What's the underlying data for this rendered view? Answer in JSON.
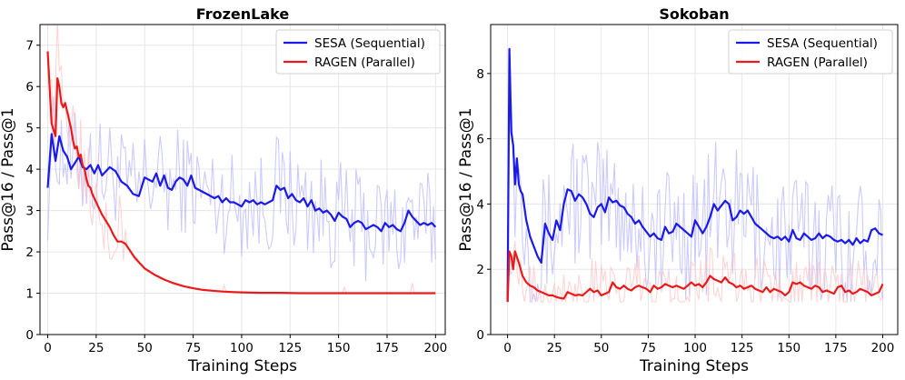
{
  "chart_data": [
    {
      "type": "line",
      "title": "FrozenLake",
      "xlabel": "Training Steps",
      "ylabel": "Pass@16 / Pass@1",
      "xlim": [
        -4,
        205
      ],
      "ylim": [
        0,
        7.5
      ],
      "xticks": [
        0,
        25,
        50,
        75,
        100,
        125,
        150,
        175,
        200
      ],
      "yticks": [
        0,
        1,
        2,
        3,
        4,
        5,
        6,
        7
      ],
      "grid": true,
      "legend_position": "top-right",
      "series": [
        {
          "name": "SESA (Sequential)",
          "color": "#1a1aeb",
          "x": [
            0,
            2,
            4,
            6,
            8,
            10,
            12,
            14,
            16,
            18,
            20,
            22,
            24,
            26,
            28,
            30,
            32,
            35,
            38,
            41,
            44,
            47,
            50,
            52,
            54,
            56,
            58,
            60,
            62,
            64,
            66,
            68,
            70,
            72,
            74,
            76,
            78,
            80,
            82,
            84,
            86,
            88,
            90,
            92,
            94,
            96,
            98,
            100,
            102,
            104,
            106,
            108,
            110,
            112,
            114,
            116,
            118,
            120,
            122,
            124,
            126,
            128,
            130,
            132,
            134,
            136,
            138,
            140,
            142,
            144,
            146,
            148,
            150,
            152,
            154,
            156,
            158,
            160,
            162,
            164,
            166,
            168,
            170,
            172,
            174,
            176,
            178,
            180,
            182,
            184,
            186,
            188,
            190,
            192,
            194,
            196,
            198,
            200
          ],
          "values": [
            3.55,
            4.85,
            4.2,
            4.8,
            4.45,
            4.3,
            4.0,
            4.15,
            4.3,
            4.05,
            4.0,
            4.1,
            3.9,
            4.1,
            3.85,
            3.95,
            4.05,
            3.95,
            3.7,
            3.6,
            3.4,
            3.35,
            3.8,
            3.75,
            3.7,
            3.9,
            3.6,
            3.85,
            3.55,
            3.5,
            3.7,
            3.8,
            3.75,
            3.6,
            3.85,
            3.55,
            3.5,
            3.45,
            3.4,
            3.35,
            3.3,
            3.35,
            3.2,
            3.3,
            3.2,
            3.2,
            3.15,
            3.1,
            3.25,
            3.2,
            3.25,
            3.15,
            3.2,
            3.15,
            3.2,
            3.25,
            3.6,
            3.5,
            3.55,
            3.3,
            3.4,
            3.25,
            3.2,
            3.3,
            3.1,
            3.25,
            3.0,
            3.05,
            2.95,
            3.0,
            2.9,
            2.75,
            2.95,
            2.85,
            2.8,
            2.6,
            2.7,
            2.75,
            2.7,
            2.55,
            2.6,
            2.65,
            2.6,
            2.5,
            2.7,
            2.6,
            2.65,
            2.55,
            2.5,
            2.7,
            3.0,
            2.85,
            2.75,
            2.65,
            2.7,
            2.65,
            2.7,
            2.6
          ],
          "raw_color": "#b9b9ff"
        },
        {
          "name": "RAGEN (Parallel)",
          "color": "#eb1a1a",
          "x": [
            0,
            2,
            4,
            5,
            6,
            7,
            8,
            9,
            10,
            11,
            12,
            13,
            14,
            15,
            16,
            17,
            18,
            19,
            20,
            21,
            22,
            23,
            24,
            26,
            28,
            30,
            32,
            34,
            36,
            38,
            40,
            45,
            50,
            55,
            60,
            65,
            70,
            75,
            80,
            85,
            90,
            95,
            100,
            110,
            120,
            130,
            140,
            150,
            160,
            170,
            180,
            190,
            200
          ],
          "values": [
            6.85,
            5.1,
            4.8,
            6.2,
            6.0,
            5.6,
            5.5,
            5.6,
            5.4,
            5.2,
            5.0,
            4.7,
            4.5,
            4.55,
            4.3,
            4.35,
            4.1,
            4.0,
            3.75,
            3.6,
            3.55,
            3.4,
            3.3,
            3.1,
            2.9,
            2.75,
            2.6,
            2.4,
            2.25,
            2.25,
            2.2,
            1.85,
            1.6,
            1.45,
            1.33,
            1.24,
            1.17,
            1.12,
            1.08,
            1.06,
            1.04,
            1.03,
            1.02,
            1.01,
            1.01,
            1.0,
            1.0,
            1.0,
            1.0,
            1.0,
            1.0,
            1.0,
            1.0
          ],
          "raw_color": "#ffc6c6"
        }
      ]
    },
    {
      "type": "line",
      "title": "Sokoban",
      "xlabel": "Training Steps",
      "ylabel": "Pass@16 / Pass@1",
      "xlim": [
        -9,
        208
      ],
      "ylim": [
        0,
        9.5
      ],
      "xticks": [
        0,
        25,
        50,
        75,
        100,
        125,
        150,
        175,
        200
      ],
      "yticks": [
        0,
        2,
        4,
        6,
        8
      ],
      "grid": true,
      "legend_position": "top-right",
      "series": [
        {
          "name": "SESA (Sequential)",
          "color": "#1a1aeb",
          "x": [
            0,
            1,
            2,
            3,
            4,
            5,
            6,
            7,
            8,
            10,
            12,
            14,
            16,
            18,
            20,
            22,
            24,
            26,
            28,
            30,
            32,
            34,
            36,
            38,
            40,
            42,
            44,
            46,
            48,
            50,
            52,
            54,
            56,
            58,
            60,
            62,
            64,
            66,
            68,
            70,
            72,
            74,
            76,
            78,
            80,
            82,
            84,
            86,
            88,
            90,
            92,
            94,
            96,
            98,
            100,
            102,
            104,
            106,
            108,
            110,
            112,
            114,
            116,
            118,
            120,
            122,
            124,
            126,
            128,
            130,
            132,
            134,
            136,
            138,
            140,
            142,
            144,
            146,
            148,
            150,
            152,
            154,
            156,
            158,
            160,
            162,
            164,
            166,
            168,
            170,
            172,
            174,
            176,
            178,
            180,
            182,
            184,
            186,
            188,
            190,
            192,
            194,
            196,
            198,
            200
          ],
          "values": [
            1.0,
            8.75,
            6.2,
            5.8,
            4.6,
            5.4,
            4.6,
            4.4,
            4.3,
            3.5,
            3.0,
            2.7,
            2.4,
            2.2,
            3.4,
            3.1,
            2.9,
            3.5,
            3.2,
            4.0,
            4.45,
            4.4,
            4.1,
            4.3,
            4.2,
            4.0,
            3.7,
            3.6,
            3.9,
            4.0,
            3.75,
            4.2,
            4.05,
            4.1,
            3.95,
            3.9,
            3.7,
            3.6,
            3.4,
            3.5,
            3.3,
            3.15,
            3.0,
            3.1,
            2.95,
            2.9,
            3.3,
            3.1,
            3.15,
            3.4,
            3.3,
            3.2,
            3.1,
            3.0,
            3.5,
            3.3,
            3.1,
            3.3,
            3.6,
            4.0,
            3.8,
            3.95,
            4.1,
            4.0,
            3.5,
            3.6,
            3.8,
            3.7,
            3.8,
            3.6,
            3.4,
            3.3,
            3.2,
            3.1,
            3.0,
            2.95,
            3.0,
            2.9,
            3.0,
            2.85,
            3.2,
            2.95,
            2.9,
            3.1,
            3.0,
            2.9,
            2.95,
            3.1,
            2.95,
            3.05,
            3.0,
            2.9,
            2.85,
            2.9,
            2.8,
            2.9,
            2.75,
            2.95,
            2.8,
            2.9,
            2.85,
            3.2,
            3.25,
            3.1,
            3.05
          ],
          "raw_color": "#b9b9ff"
        },
        {
          "name": "RAGEN (Parallel)",
          "color": "#eb1a1a",
          "x": [
            0,
            1,
            2,
            3,
            4,
            6,
            8,
            10,
            12,
            14,
            16,
            18,
            20,
            22,
            24,
            26,
            28,
            30,
            32,
            34,
            36,
            38,
            40,
            42,
            44,
            46,
            48,
            50,
            52,
            54,
            56,
            58,
            60,
            62,
            64,
            66,
            68,
            70,
            72,
            74,
            76,
            78,
            80,
            82,
            84,
            86,
            88,
            90,
            92,
            94,
            96,
            98,
            100,
            102,
            104,
            106,
            108,
            110,
            112,
            114,
            116,
            118,
            120,
            122,
            124,
            126,
            128,
            130,
            132,
            134,
            136,
            138,
            140,
            142,
            144,
            146,
            148,
            150,
            152,
            154,
            156,
            158,
            160,
            162,
            164,
            166,
            168,
            170,
            172,
            174,
            176,
            178,
            180,
            182,
            184,
            186,
            188,
            190,
            192,
            194,
            196,
            198,
            200
          ],
          "values": [
            1.0,
            2.55,
            2.4,
            2.0,
            2.55,
            2.2,
            1.8,
            1.6,
            1.5,
            1.45,
            1.35,
            1.3,
            1.25,
            1.2,
            1.2,
            1.15,
            1.12,
            1.1,
            1.3,
            1.25,
            1.2,
            1.22,
            1.2,
            1.3,
            1.4,
            1.3,
            1.35,
            1.2,
            1.25,
            1.3,
            1.6,
            1.45,
            1.4,
            1.5,
            1.4,
            1.35,
            1.45,
            1.5,
            1.45,
            1.4,
            1.3,
            1.5,
            1.4,
            1.45,
            1.55,
            1.5,
            1.45,
            1.5,
            1.45,
            1.4,
            1.5,
            1.6,
            1.5,
            1.55,
            1.45,
            1.6,
            1.8,
            1.7,
            1.65,
            1.6,
            1.75,
            1.6,
            1.55,
            1.45,
            1.5,
            1.4,
            1.45,
            1.5,
            1.4,
            1.35,
            1.3,
            1.45,
            1.3,
            1.4,
            1.35,
            1.3,
            1.2,
            1.3,
            1.6,
            1.55,
            1.6,
            1.5,
            1.45,
            1.4,
            1.5,
            1.45,
            1.3,
            1.35,
            1.3,
            1.25,
            1.45,
            1.5,
            1.3,
            1.35,
            1.25,
            1.3,
            1.4,
            1.35,
            1.3,
            1.2,
            1.25,
            1.3,
            1.55
          ],
          "raw_color": "#ffc6c6"
        }
      ]
    }
  ]
}
